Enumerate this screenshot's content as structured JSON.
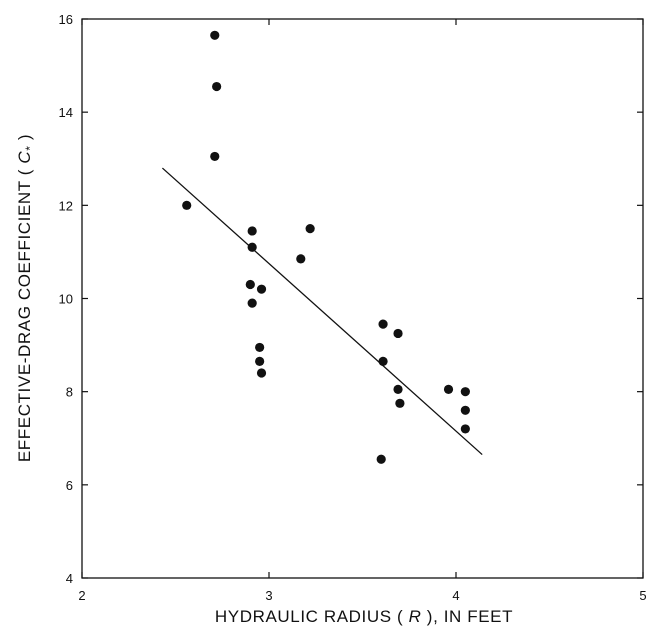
{
  "chart_data": {
    "type": "scatter",
    "xlabel": {
      "prefix": "HYDRAULIC RADIUS ( ",
      "symbol": "R",
      "suffix": " ), IN FEET"
    },
    "ylabel": {
      "prefix": "EFFECTIVE-DRAG COEFFICIENT ( ",
      "symbol": "C",
      "subscript": "*",
      "suffix": " )"
    },
    "xlim": [
      2,
      5
    ],
    "ylim": [
      4,
      16
    ],
    "xticks": [
      2,
      3,
      4,
      5
    ],
    "yticks": [
      4,
      6,
      8,
      10,
      12,
      14,
      16
    ],
    "xtick_labels": [
      "2",
      "3",
      "4",
      "5"
    ],
    "ytick_labels": [
      "4",
      "6",
      "8",
      "10",
      "12",
      "14",
      "16"
    ],
    "grid": false,
    "points": [
      {
        "x": 2.56,
        "y": 12.0
      },
      {
        "x": 2.71,
        "y": 15.65
      },
      {
        "x": 2.72,
        "y": 14.55
      },
      {
        "x": 2.71,
        "y": 13.05
      },
      {
        "x": 2.91,
        "y": 11.45
      },
      {
        "x": 2.91,
        "y": 11.1
      },
      {
        "x": 2.9,
        "y": 10.3
      },
      {
        "x": 2.91,
        "y": 9.9
      },
      {
        "x": 2.96,
        "y": 10.2
      },
      {
        "x": 2.95,
        "y": 8.95
      },
      {
        "x": 2.95,
        "y": 8.65
      },
      {
        "x": 2.96,
        "y": 8.4
      },
      {
        "x": 3.17,
        "y": 10.85
      },
      {
        "x": 3.22,
        "y": 11.5
      },
      {
        "x": 3.61,
        "y": 9.45
      },
      {
        "x": 3.61,
        "y": 8.65
      },
      {
        "x": 3.69,
        "y": 9.25
      },
      {
        "x": 3.69,
        "y": 8.05
      },
      {
        "x": 3.7,
        "y": 7.75
      },
      {
        "x": 3.6,
        "y": 6.55
      },
      {
        "x": 3.96,
        "y": 8.05
      },
      {
        "x": 4.05,
        "y": 8.0
      },
      {
        "x": 4.05,
        "y": 7.6
      },
      {
        "x": 4.05,
        "y": 7.2
      }
    ],
    "regression_line": {
      "x": [
        2.43,
        4.14
      ],
      "y": [
        12.8,
        6.65
      ]
    },
    "colors": {
      "ink": "#111111",
      "background": "#ffffff"
    }
  }
}
